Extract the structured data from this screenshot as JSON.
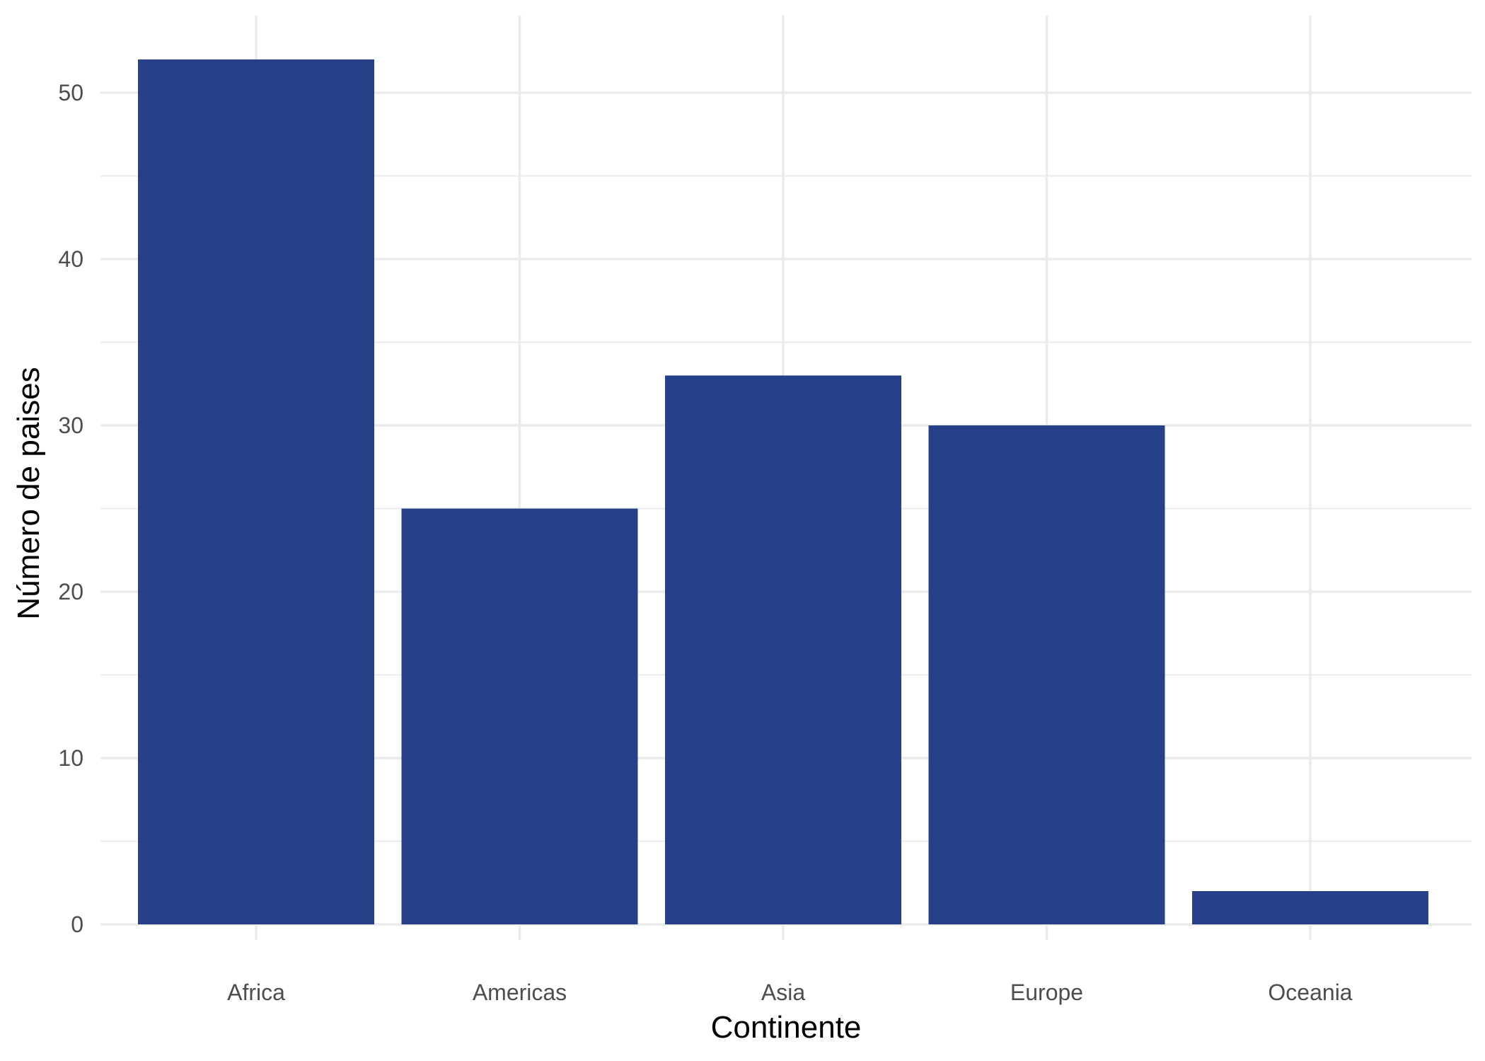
{
  "chart_data": {
    "type": "bar",
    "categories": [
      "Africa",
      "Americas",
      "Asia",
      "Europe",
      "Oceania"
    ],
    "values": [
      52,
      25,
      33,
      30,
      2
    ],
    "xlabel": "Continente",
    "ylabel": "Número de paises",
    "ylim": [
      0,
      54.5
    ],
    "yticks": [
      0,
      10,
      20,
      30,
      40,
      50
    ],
    "grid": true,
    "legend": "none",
    "bar_color": "#26418a",
    "grid_color": "#ebebeb"
  }
}
